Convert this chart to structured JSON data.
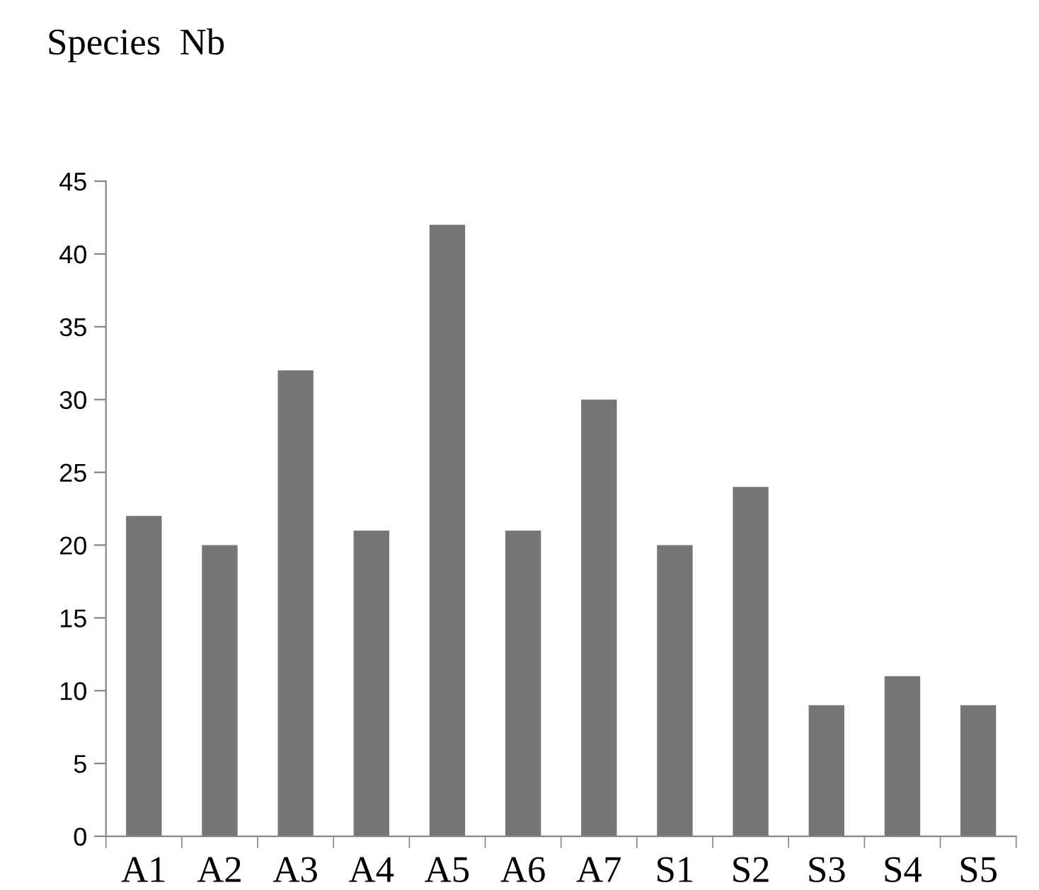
{
  "chart_data": {
    "type": "bar",
    "title": "Species  Nb",
    "categories": [
      "A1",
      "A2",
      "A3",
      "A4",
      "A5",
      "A6",
      "A7",
      "S1",
      "S2",
      "S3",
      "S4",
      "S5"
    ],
    "values": [
      22,
      20,
      32,
      21,
      42,
      21,
      30,
      20,
      24,
      9,
      11,
      9
    ],
    "color": "#767676",
    "ylim": [
      0,
      45
    ],
    "yticks": [
      0,
      5,
      10,
      15,
      20,
      25,
      30,
      35,
      40,
      45
    ],
    "grid": false
  }
}
